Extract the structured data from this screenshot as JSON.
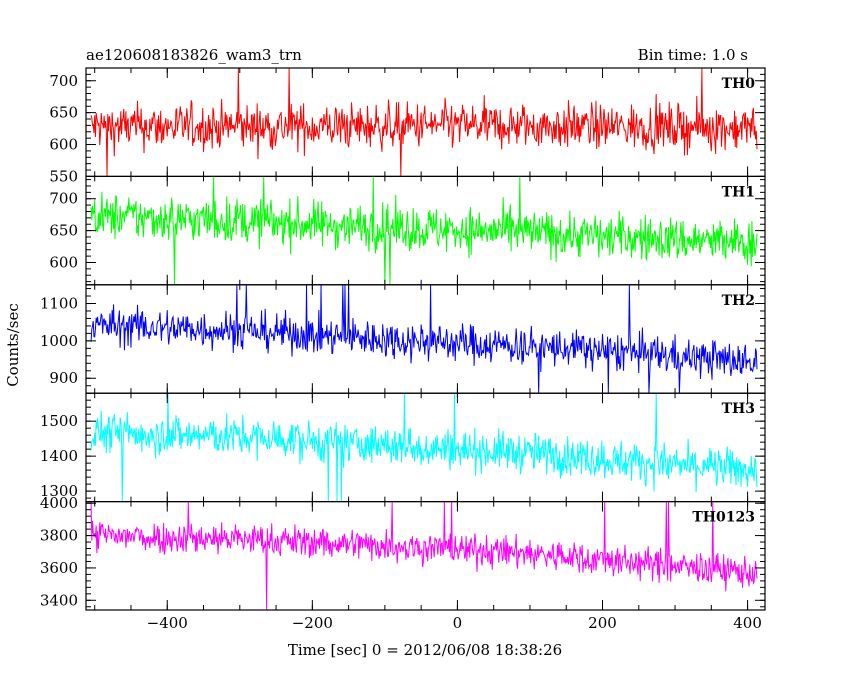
{
  "header": {
    "title": "ae120608183826_wam3_trn",
    "bin_time": "Bin time: 1.0 s"
  },
  "chart_data": {
    "type": "line",
    "xlabel": "Time [sec] 0 = 2012/06/08 18:38:26",
    "ylabel": "Counts/sec",
    "xlim": [
      -512,
      424
    ],
    "x_ticks": [
      -400,
      -200,
      0,
      200,
      400
    ],
    "x_range": [
      -505,
      413
    ],
    "grid": false,
    "panels": [
      {
        "name": "TH0",
        "color": "#ff0000",
        "ylim": [
          550,
          720
        ],
        "y_ticks": [
          550,
          600,
          650,
          700
        ],
        "trend": [
          [
            -505,
            628
          ],
          [
            -200,
            628
          ],
          [
            0,
            630
          ],
          [
            200,
            628
          ],
          [
            413,
            626
          ]
        ],
        "noise": 25,
        "spike_high": 720,
        "spike_low": 550
      },
      {
        "name": "TH1",
        "color": "#00ff00",
        "ylim": [
          565,
          735
        ],
        "y_ticks": [
          600,
          650,
          700
        ],
        "trend": [
          [
            -505,
            673
          ],
          [
            -300,
            665
          ],
          [
            -100,
            655
          ],
          [
            100,
            647
          ],
          [
            300,
            636
          ],
          [
            413,
            630
          ]
        ],
        "noise": 25,
        "spike_high": 735,
        "spike_low": 565
      },
      {
        "name": "TH2",
        "color": "#0000ff",
        "ylim": [
          860,
          1150
        ],
        "y_ticks": [
          900,
          1000,
          1100
        ],
        "trend": [
          [
            -505,
            1042
          ],
          [
            -300,
            1028
          ],
          [
            -100,
            1005
          ],
          [
            100,
            985
          ],
          [
            250,
            968
          ],
          [
            413,
            942
          ]
        ],
        "noise": 36,
        "spike_high": 1150,
        "spike_low": 860
      },
      {
        "name": "TH3",
        "color": "#00ffff",
        "ylim": [
          1270,
          1580
        ],
        "y_ticks": [
          1300,
          1400,
          1500
        ],
        "trend": [
          [
            -505,
            1470
          ],
          [
            -300,
            1455
          ],
          [
            -100,
            1430
          ],
          [
            100,
            1410
          ],
          [
            300,
            1375
          ],
          [
            413,
            1360
          ]
        ],
        "noise": 40,
        "spike_high": 1580,
        "spike_low": 1270
      },
      {
        "name": "TH0123",
        "color": "#ff00ff",
        "ylim": [
          3340,
          4010
        ],
        "y_ticks": [
          3400,
          3600,
          3800,
          4000
        ],
        "trend": [
          [
            -505,
            3800
          ],
          [
            -300,
            3780
          ],
          [
            -100,
            3740
          ],
          [
            100,
            3690
          ],
          [
            300,
            3610
          ],
          [
            413,
            3570
          ]
        ],
        "noise": 70,
        "spike_high": 4010,
        "spike_low": 3340
      }
    ]
  }
}
